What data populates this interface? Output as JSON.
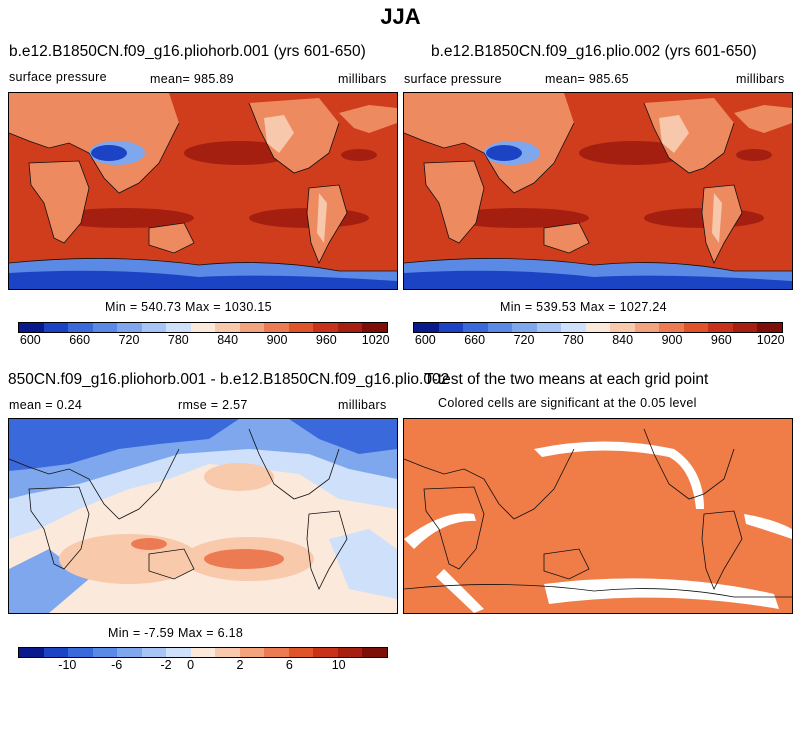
{
  "title": "JJA",
  "panels": [
    {
      "title": "b.e12.B1850CN.f09_g16.pliohorb.001 (yrs 601-650)",
      "left_label": "surface pressure",
      "mean_label": "mean=  985.89",
      "units": "millibars",
      "minmax": "Min = 540.73 Max = 1030.15"
    },
    {
      "title": "b.e12.B1850CN.f09_g16.plio.002 (yrs 601-650)",
      "left_label": "surface pressure",
      "mean_label": "mean=  985.65",
      "units": "millibars",
      "minmax": "Min = 539.53 Max = 1027.24"
    },
    {
      "title": "850CN.f09_g16.pliohorb.001 - b.e12.B1850CN.f09_g16.plio.002",
      "mean_label": "mean =    0.24",
      "rmse_label": "rmse =    2.57",
      "units": "millibars",
      "minmax": "Min =  -7.59 Max =   6.18"
    },
    {
      "title": "T-test of the two means at each grid point",
      "subtitle": "Colored cells are significant at the 0.05 level"
    }
  ],
  "colorbar_abs": {
    "colors": [
      "#0a1a8c",
      "#1c43c4",
      "#3a69dc",
      "#5a8ae6",
      "#7ea7ee",
      "#a6c5f4",
      "#cfe0fa",
      "#fbe9dc",
      "#f8c9ab",
      "#f3a37e",
      "#ec7a52",
      "#e0542c",
      "#c8321a",
      "#a61f10",
      "#7e0f08"
    ],
    "labels": [
      "600",
      "660",
      "720",
      "780",
      "840",
      "900",
      "960",
      "1020"
    ]
  },
  "colorbar_diff": {
    "colors": [
      "#0a1a8c",
      "#1c43c4",
      "#3a69dc",
      "#5a8ae6",
      "#7ea7ee",
      "#a6c5f4",
      "#cfe0fa",
      "#fbe9dc",
      "#f8c9ab",
      "#f3a37e",
      "#ec7a52",
      "#e0542c",
      "#c8321a",
      "#a61f10",
      "#7e0f08"
    ],
    "labels": [
      "-10",
      "-6",
      "-2",
      "0",
      "2",
      "6",
      "10"
    ]
  },
  "map_colors": {
    "abs_ocean": "#cf3d1c",
    "abs_high": "#a51f10",
    "abs_land_mid": "#ee8a60",
    "abs_land_low": "#f7c8ab",
    "abs_plateau": "#1c43c4",
    "abs_plateau_edge": "#7ea7ee",
    "abs_antarctic_edge": "#5a8ae6",
    "diff_neg_strong": "#3a69dc",
    "diff_neg": "#7ea7ee",
    "diff_neg_weak": "#cfe0fa",
    "diff_pos_weak": "#fbe9dc",
    "diff_pos": "#f8c9ab",
    "diff_pos_strong": "#ec7a52",
    "ttest_sig": "#f07c48",
    "ttest_nonsig": "#ffffff"
  }
}
